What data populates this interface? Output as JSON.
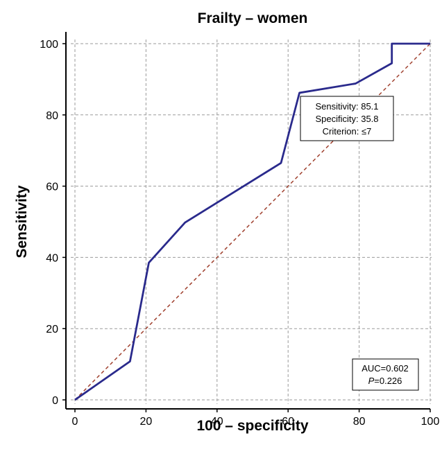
{
  "chart_data": {
    "type": "line",
    "title": "Frailty – women",
    "xlabel": "100 – specificity",
    "ylabel": "Sensitivity",
    "xlim": [
      0,
      100
    ],
    "ylim": [
      0,
      100
    ],
    "x_ticks": [
      0,
      20,
      40,
      60,
      80,
      100
    ],
    "y_ticks": [
      0,
      20,
      40,
      60,
      80,
      100
    ],
    "grid": true,
    "colors": {
      "roc": "#2a2a8c",
      "reference": "#a0402e",
      "grid": "#9a9a9a"
    },
    "series": [
      {
        "x": [
          0,
          15.5,
          20.8,
          31,
          58,
          63.2,
          79,
          89.2,
          89.2,
          100
        ],
        "y": [
          0,
          10.8,
          38.5,
          49.8,
          66.5,
          86.2,
          88.8,
          94.5,
          100,
          100
        ]
      },
      {
        "x": [
          0,
          100
        ],
        "y": [
          0,
          100
        ]
      }
    ],
    "annotations": {
      "criterion_box": {
        "lines": [
          "Sensitivity: 85.1",
          "Specificity: 35.8",
          "Criterion: ≤7"
        ]
      },
      "auc_box": {
        "auc": "AUC=0.602",
        "p_label": "P",
        "p_value": "=0.226"
      }
    }
  }
}
